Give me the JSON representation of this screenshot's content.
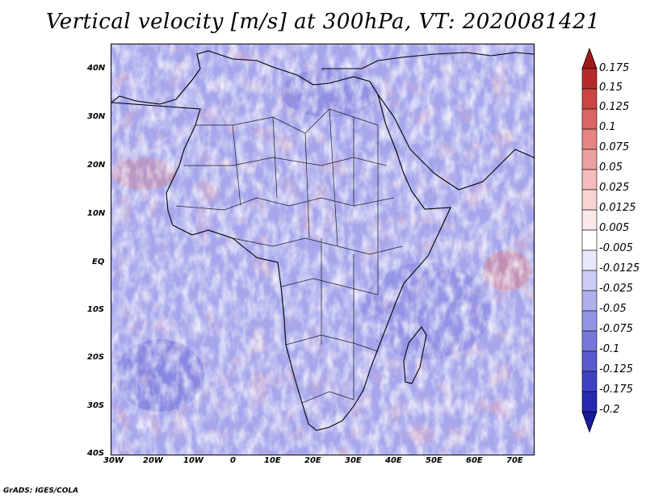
{
  "title": "Vertical velocity [m/s] at 300hPa, VT: 2020081421",
  "footer": "GrADS: IGES/COLA",
  "map": {
    "variable": "Vertical velocity",
    "units": "m/s",
    "level": "300hPa",
    "valid_time": "2020081421",
    "lon_range": [
      -30,
      75
    ],
    "lat_range": [
      -40,
      45
    ],
    "lon_ticks": [
      "30W",
      "20W",
      "10W",
      "0",
      "10E",
      "20E",
      "30E",
      "40E",
      "50E",
      "60E",
      "70E"
    ],
    "lat_ticks": [
      "40N",
      "30N",
      "20N",
      "10N",
      "EQ",
      "10S",
      "20S",
      "30S",
      "40S"
    ]
  },
  "colorbar": {
    "labels": [
      "0.175",
      "0.15",
      "0.125",
      "0.1",
      "0.075",
      "0.05",
      "0.025",
      "0.0125",
      "0.005",
      "-0.005",
      "-0.0125",
      "-0.025",
      "-0.05",
      "-0.075",
      "-0.1",
      "-0.125",
      "-0.175",
      "-0.2"
    ],
    "colors": [
      "#a01818",
      "#b82a2a",
      "#cc4444",
      "#dc6464",
      "#e68484",
      "#eea0a0",
      "#f4bcbc",
      "#f8d4d4",
      "#fbe8e8",
      "#ffffff",
      "#e8e8fb",
      "#ccccf6",
      "#b0b0ef",
      "#9494e6",
      "#7878dc",
      "#5a5ad0",
      "#4040c2",
      "#2828b0",
      "#1818a0"
    ]
  }
}
